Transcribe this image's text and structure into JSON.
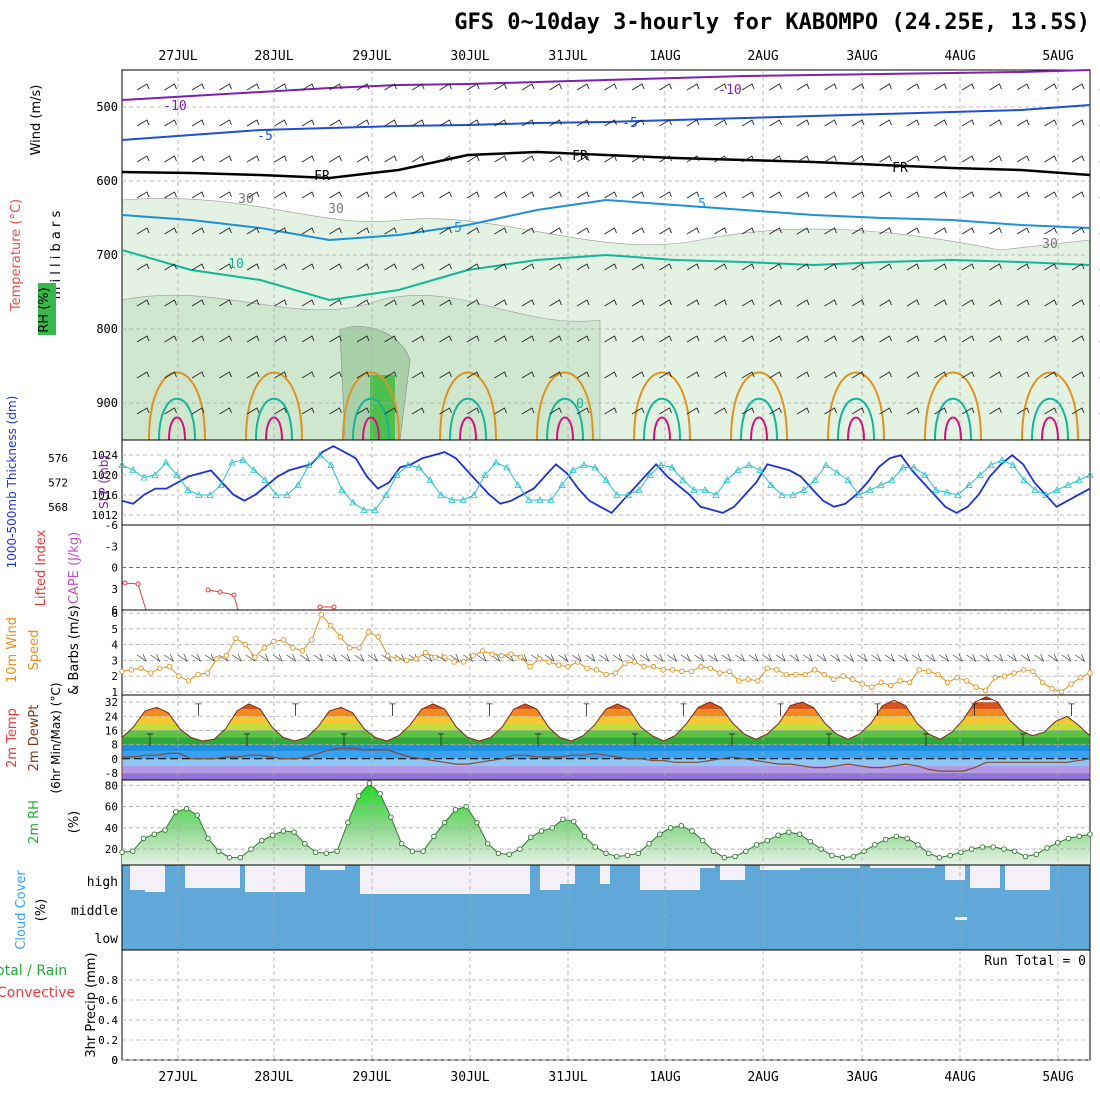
{
  "header": {
    "title": "GFS 0~10day 3-hourly for KABOMPO (24.25E, 13.5S)"
  },
  "dates": [
    "27JUL",
    "28JUL",
    "29JUL",
    "30JUL",
    "31JUL",
    "1AUG",
    "2AUG",
    "3AUG",
    "4AUG",
    "5AUG"
  ],
  "colors": {
    "purple": "#7d1fb4",
    "blue": "#1f4fd6",
    "cyan": "#1e90d8",
    "teal": "#14b59b",
    "orange": "#e0921f",
    "magenta": "#d3127d",
    "slp": "#27c1c9",
    "thick": "#1e32d0",
    "rhgreen": "#22aa3a",
    "cloud": "#5fa8d8"
  },
  "panel_labels": {
    "upper_wind": "Wind (m/s)",
    "upper_temp": "Temperature (°C)",
    "upper_rh": "RH (%)",
    "upper_mb": "m i l l i b a r s",
    "thickness": "1000-500mb Thickness (dm)",
    "slp": "SLP (mb)",
    "li": "Lifted Index",
    "cape": "CAPE (J/kg)",
    "wind10": "10m Wind",
    "speed": "Speed",
    "barbs": "& Barbs (m/s)",
    "temp2m": "2m Temp",
    "dewpt2m": "2m DewPt",
    "minmax": "(6hr Min/Max) (°C)",
    "rh2m": "2m RH",
    "rh2m_unit": "(%)",
    "cloud": "Cloud Cover",
    "cloud_unit": "(%)",
    "precip_total": "Total / Rain",
    "precip_conv": "Convective",
    "precip": "3hr Precip (mm)",
    "run_total": "Run Total = 0"
  },
  "contour_labels": [
    "-10",
    "-10",
    "-5",
    "-5",
    "FR",
    "FR",
    "5",
    "5",
    "10",
    "0",
    "30",
    "30",
    "30",
    "10"
  ],
  "cloud_levels": [
    "high",
    "middle",
    "low"
  ],
  "chart_data": [
    {
      "type": "heatmap",
      "name": "upper_air_cross_section",
      "yticks": [
        500,
        600,
        700,
        800,
        900
      ],
      "ylim": [
        450,
        950
      ]
    },
    {
      "type": "line",
      "name": "slp_thickness",
      "yticks_thickness": [
        568,
        572,
        576
      ],
      "yticks_slp": [
        1012,
        1016,
        1020,
        1024
      ],
      "series": [
        {
          "name": "SLP",
          "values": [
            1022,
            1021,
            1019.5,
            1020,
            1022.5,
            1020,
            1017,
            1016,
            1016,
            1018,
            1022.5,
            1023,
            1021,
            1019,
            1016,
            1016,
            1018,
            1022,
            1024,
            1022,
            1017,
            1014.5,
            1013,
            1013,
            1016,
            1020,
            1022,
            1021.5,
            1019,
            1016,
            1015,
            1015,
            1016,
            1020,
            1022.5,
            1021.5,
            1018,
            1015,
            1015,
            1015,
            1018,
            1021,
            1022,
            1021.5,
            1019,
            1016,
            1016,
            1017,
            1020,
            1022,
            1021.5,
            1019,
            1017,
            1017,
            1016,
            1019,
            1021,
            1022,
            1021,
            1018,
            1016,
            1016,
            1017,
            1019,
            1022,
            1020.5,
            1019,
            1016,
            1017,
            1018,
            1019,
            1021.5,
            1021.5,
            1020,
            1017,
            1016.5,
            1016,
            1018,
            1020,
            1022,
            1023,
            1022,
            1019,
            1017,
            1016,
            1017,
            1018,
            1019,
            1020
          ]
        },
        {
          "name": "Thickness",
          "values": [
            569,
            568.5,
            570,
            571,
            571,
            572,
            573,
            573.5,
            574,
            572,
            570,
            569,
            570,
            571.5,
            573,
            574,
            574.5,
            575,
            577,
            578,
            577,
            576,
            573,
            571,
            572,
            574.5,
            575,
            576,
            576.5,
            577,
            576,
            574,
            572,
            570,
            568.5,
            569,
            570,
            571,
            573,
            575,
            573.5,
            571,
            569,
            568,
            567,
            569,
            571,
            573,
            575,
            573,
            571.5,
            570,
            568,
            567.5,
            567,
            568,
            570,
            572,
            575,
            574.5,
            574,
            573,
            571,
            569,
            568,
            568.5,
            570,
            572,
            574.5,
            576,
            576.5,
            574,
            572,
            570,
            568,
            567,
            568,
            570,
            573,
            575,
            576.5,
            575,
            572,
            570,
            568,
            569,
            570,
            571
          ]
        }
      ]
    },
    {
      "type": "line",
      "name": "lifted_index",
      "yticks": [
        -6,
        -3,
        0,
        3,
        6
      ],
      "ylim": [
        -6,
        6
      ],
      "series": [
        {
          "name": "Lifted Index",
          "values": [
            2.8,
            2.9,
            5.8,
            null,
            null,
            null,
            null,
            3.1,
            3.5,
            3.7,
            null,
            null,
            null,
            null,
            null,
            null,
            null,
            null,
            5.4,
            5.4
          ]
        }
      ]
    },
    {
      "type": "line",
      "name": "wind10m",
      "yticks": [
        1,
        2,
        3,
        4,
        5,
        6
      ],
      "ylim": [
        0.8,
        6.2
      ],
      "series": [
        {
          "name": "Speed",
          "values": [
            2.3,
            2.4,
            2.5,
            2.2,
            2.5,
            2.6,
            2,
            1.7,
            2.1,
            2.2,
            3.1,
            3.3,
            4.4,
            4,
            3.2,
            3.8,
            4.2,
            4.3,
            3.8,
            3.6,
            4.3,
            5.9,
            5.2,
            4.5,
            3.8,
            3.8,
            4.8,
            4.5,
            3.3,
            3.1,
            3,
            3.1,
            3.5,
            3.2,
            3.2,
            2.9,
            2.9,
            3.3,
            3.6,
            3.4,
            3.3,
            3.4,
            3.2,
            2.6,
            3.1,
            2.9,
            2.7,
            2.6,
            2.9,
            2.5,
            2.4,
            2.1,
            2.2,
            2.8,
            2.9,
            2.6,
            2.6,
            2.4,
            2.4,
            2.3,
            2.3,
            2.6,
            2.5,
            2.2,
            2.3,
            1.7,
            1.8,
            1.7,
            2.5,
            2.4,
            2.1,
            2.1,
            2.1,
            2.4,
            2.1,
            1.8,
            2,
            1.8,
            1.5,
            1.3,
            1.6,
            1.4,
            1.7,
            1.6,
            2.4,
            2.3,
            2.1,
            1.6,
            1.9,
            1.7,
            1.3,
            1.1,
            1.9,
            2,
            2.2,
            2.4,
            2.3,
            1.6,
            1.2,
            1,
            1.5,
            1.9,
            2.2
          ]
        }
      ]
    },
    {
      "type": "area",
      "name": "temp2m",
      "yticks": [
        -8,
        0,
        8,
        16,
        24,
        32
      ],
      "ylim": [
        -12,
        36
      ],
      "series": [
        {
          "name": "2m Temp",
          "values": [
            12,
            18,
            27,
            29,
            26,
            17,
            12,
            10,
            11,
            17,
            27,
            31,
            28,
            18,
            12,
            10,
            12,
            18,
            27,
            29,
            26,
            17,
            12,
            10,
            13,
            19,
            28,
            31,
            28,
            18,
            12,
            10,
            12,
            18,
            28,
            31,
            28,
            18,
            12,
            10,
            13,
            19,
            28,
            31,
            28,
            18,
            13,
            10,
            13,
            20,
            29,
            32,
            29,
            20,
            14,
            11,
            14,
            20,
            30,
            32,
            29,
            20,
            14,
            11,
            14,
            20,
            30,
            33,
            30,
            20,
            14,
            11,
            15,
            22,
            32,
            35,
            32,
            22,
            16,
            13,
            15,
            21,
            24,
            19,
            13
          ]
        },
        {
          "name": "2m DewPt",
          "values": [
            1,
            1,
            2,
            2,
            3,
            3,
            0,
            0,
            0,
            1,
            1,
            2,
            2,
            1,
            0,
            0,
            1,
            3,
            5,
            6,
            6,
            5,
            5,
            5,
            3,
            1,
            0,
            -1,
            -2,
            -3,
            -3,
            -2,
            -1,
            0,
            2,
            2,
            1,
            1,
            1,
            2,
            2,
            3,
            2,
            1,
            0,
            0,
            -1,
            -1,
            -2,
            -2,
            -2,
            -1,
            0,
            1,
            0,
            -1,
            -2,
            -3,
            -3,
            -4,
            -5,
            -5,
            -4,
            -3,
            -4,
            -5,
            -5,
            -4,
            -3,
            -4,
            -6,
            -7,
            -7,
            -7,
            -5,
            -2,
            -2,
            -2,
            -2,
            -2,
            -2,
            -2,
            -2,
            -1,
            0
          ]
        }
      ]
    },
    {
      "type": "area",
      "name": "rh2m",
      "yticks": [
        20,
        40,
        60,
        80
      ],
      "ylim": [
        5,
        85
      ],
      "series": [
        {
          "name": "2m RH",
          "values": [
            17,
            18,
            30,
            34,
            38,
            55,
            58,
            52,
            30,
            18,
            12,
            12,
            20,
            28,
            33,
            37,
            36,
            25,
            17,
            16,
            18,
            45,
            70,
            82,
            72,
            50,
            25,
            18,
            18,
            32,
            45,
            57,
            60,
            45,
            25,
            16,
            15,
            20,
            31,
            37,
            40,
            48,
            46,
            32,
            22,
            16,
            13,
            14,
            16,
            25,
            34,
            40,
            42,
            37,
            28,
            18,
            12,
            13,
            18,
            24,
            28,
            33,
            36,
            34,
            27,
            20,
            14,
            12,
            13,
            18,
            24,
            29,
            32,
            30,
            24,
            16,
            12,
            14,
            17,
            20,
            22,
            22,
            20,
            18,
            13,
            15,
            21,
            26,
            30,
            32,
            34
          ]
        }
      ]
    },
    {
      "type": "bar",
      "name": "cloud_cover"
    },
    {
      "type": "bar",
      "name": "precip_3hr",
      "yticks": [
        0,
        0.2,
        0.4,
        0.6,
        0.8
      ],
      "ylim": [
        0,
        1
      ],
      "values": []
    }
  ]
}
